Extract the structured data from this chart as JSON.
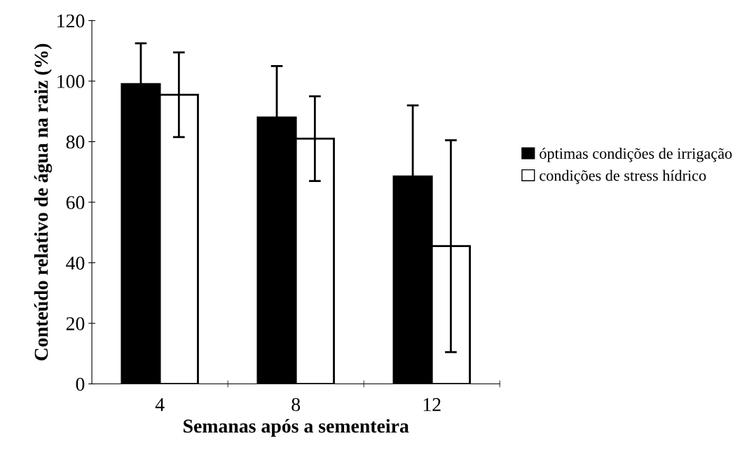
{
  "chart_data": {
    "type": "bar",
    "xlabel": "Semanas após a sementeira",
    "ylabel": "Conteúdo relativo de água na raiz (%)",
    "categories": [
      "4",
      "8",
      "12"
    ],
    "series": [
      {
        "name": "óptimas condições de irrigação",
        "color": "#000000",
        "values": [
          99,
          88,
          68.5
        ],
        "errors": [
          13.5,
          17,
          23.5
        ]
      },
      {
        "name": "condições de stress hídrico",
        "color": "#ffffff",
        "values": [
          95.5,
          81,
          45.5
        ],
        "errors": [
          14,
          14,
          35
        ]
      }
    ],
    "ylim": [
      0,
      120
    ],
    "yticks": [
      0,
      20,
      40,
      60,
      80,
      100,
      120
    ],
    "grid": false,
    "legend": "right"
  }
}
